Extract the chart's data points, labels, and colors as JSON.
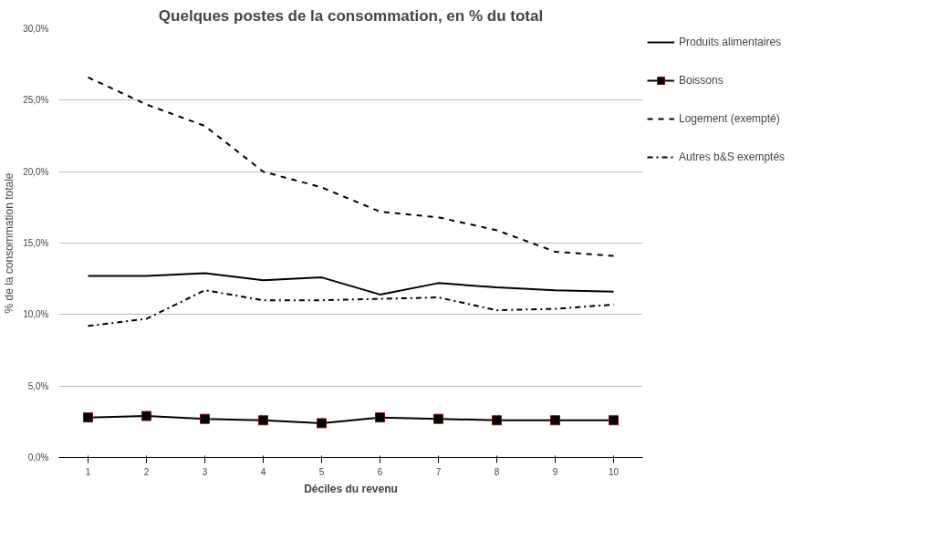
{
  "chart_data": {
    "type": "line",
    "title": "Quelques postes de la consommation, en % du total",
    "xlabel": "Déciles du revenu",
    "ylabel": "% de la consommation totale",
    "x": [
      1,
      2,
      3,
      4,
      5,
      6,
      7,
      8,
      9,
      10
    ],
    "xlim": [
      0.5,
      10.5
    ],
    "xticks": [
      1,
      2,
      3,
      4,
      5,
      6,
      7,
      8,
      9,
      10
    ],
    "ylim": [
      0,
      30
    ],
    "yticks": [
      {
        "value": 0,
        "label": "0,0%"
      },
      {
        "value": 5,
        "label": "5,0%"
      },
      {
        "value": 10,
        "label": "10,0%"
      },
      {
        "value": 15,
        "label": "15,0%"
      },
      {
        "value": 20,
        "label": "20,0%"
      },
      {
        "value": 25,
        "label": "25,0%"
      },
      {
        "value": 30,
        "label": "30,0%"
      }
    ],
    "grid": "y",
    "legend": "right",
    "series": [
      {
        "name": "Produits alimentaires",
        "color": "#000000",
        "line_style": "solid",
        "marker": "none",
        "values": [
          12.7,
          12.7,
          12.9,
          12.4,
          12.6,
          11.4,
          12.2,
          11.9,
          11.7,
          11.6
        ]
      },
      {
        "name": "Boissons",
        "color": "#000000",
        "line_style": "solid",
        "marker": "square",
        "values": [
          2.8,
          2.9,
          2.7,
          2.6,
          2.4,
          2.8,
          2.7,
          2.6,
          2.6,
          2.6
        ]
      },
      {
        "name": "Logement (exempté)",
        "color": "#000000",
        "line_style": "dashed",
        "marker": "none",
        "values": [
          26.6,
          24.7,
          23.2,
          20.0,
          18.9,
          17.2,
          16.8,
          15.9,
          14.4,
          14.1
        ]
      },
      {
        "name": "Autres b&S exemptés",
        "color": "#000000",
        "line_style": "dashdot",
        "marker": "none",
        "values": [
          9.2,
          9.7,
          11.7,
          11.0,
          11.0,
          11.1,
          11.2,
          10.3,
          10.4,
          10.7
        ]
      }
    ]
  }
}
